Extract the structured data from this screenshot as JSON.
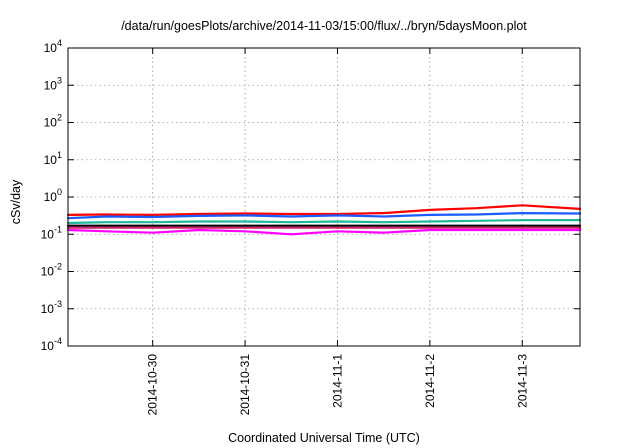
{
  "chart_data": {
    "type": "line",
    "title": "/data/run/goesPlots/archive/2014-11-03/15:00/flux/../bryn/5daysMoon.plot",
    "xlabel": "Coordinated Universal Time (UTC)",
    "ylabel": "cSv/day",
    "y_scale": "log",
    "ylim": [
      0.0001,
      10000
    ],
    "y_ticks": [
      {
        "value": 0.0001,
        "base": "10",
        "exp": "-4"
      },
      {
        "value": 0.001,
        "base": "10",
        "exp": "-3"
      },
      {
        "value": 0.01,
        "base": "10",
        "exp": "-2"
      },
      {
        "value": 0.1,
        "base": "10",
        "exp": "-1"
      },
      {
        "value": 1,
        "base": "10",
        "exp": "0"
      },
      {
        "value": 10,
        "base": "10",
        "exp": "1"
      },
      {
        "value": 100,
        "base": "10",
        "exp": "2"
      },
      {
        "value": 1000,
        "base": "10",
        "exp": "3"
      },
      {
        "value": 10000,
        "base": "10",
        "exp": "4"
      }
    ],
    "xlim": [
      "2014-10-29T02:00",
      "2014-11-03T15:00"
    ],
    "x_ticks": [
      "2014-10-30",
      "2014-10-31",
      "2014-11-1",
      "2014-11-2",
      "2014-11-3"
    ],
    "x_tick_dates": [
      "2014-10-30T00:00",
      "2014-10-31T00:00",
      "2014-11-01T00:00",
      "2014-11-02T00:00",
      "2014-11-03T00:00"
    ],
    "grid": true,
    "series": [
      {
        "color": "#ff0000",
        "values": [
          {
            "x": "2014-10-29T02:00",
            "y": 0.33
          },
          {
            "x": "2014-10-29T12:00",
            "y": 0.34
          },
          {
            "x": "2014-10-30T00:00",
            "y": 0.33
          },
          {
            "x": "2014-10-30T12:00",
            "y": 0.35
          },
          {
            "x": "2014-10-31T00:00",
            "y": 0.36
          },
          {
            "x": "2014-10-31T12:00",
            "y": 0.35
          },
          {
            "x": "2014-11-01T00:00",
            "y": 0.35
          },
          {
            "x": "2014-11-01T12:00",
            "y": 0.37
          },
          {
            "x": "2014-11-02T00:00",
            "y": 0.45
          },
          {
            "x": "2014-11-02T12:00",
            "y": 0.5
          },
          {
            "x": "2014-11-03T00:00",
            "y": 0.6
          },
          {
            "x": "2014-11-03T15:00",
            "y": 0.48
          }
        ]
      },
      {
        "color": "#1a5cff",
        "values": [
          {
            "x": "2014-10-29T02:00",
            "y": 0.27
          },
          {
            "x": "2014-10-29T12:00",
            "y": 0.3
          },
          {
            "x": "2014-10-30T00:00",
            "y": 0.29
          },
          {
            "x": "2014-10-30T12:00",
            "y": 0.31
          },
          {
            "x": "2014-10-31T00:00",
            "y": 0.32
          },
          {
            "x": "2014-10-31T12:00",
            "y": 0.3
          },
          {
            "x": "2014-11-01T00:00",
            "y": 0.32
          },
          {
            "x": "2014-11-01T12:00",
            "y": 0.3
          },
          {
            "x": "2014-11-02T00:00",
            "y": 0.33
          },
          {
            "x": "2014-11-02T12:00",
            "y": 0.34
          },
          {
            "x": "2014-11-03T00:00",
            "y": 0.37
          },
          {
            "x": "2014-11-03T15:00",
            "y": 0.36
          }
        ]
      },
      {
        "color": "#1fb89a",
        "values": [
          {
            "x": "2014-10-29T02:00",
            "y": 0.2
          },
          {
            "x": "2014-10-29T12:00",
            "y": 0.21
          },
          {
            "x": "2014-10-30T00:00",
            "y": 0.21
          },
          {
            "x": "2014-10-30T12:00",
            "y": 0.22
          },
          {
            "x": "2014-10-31T00:00",
            "y": 0.22
          },
          {
            "x": "2014-10-31T12:00",
            "y": 0.21
          },
          {
            "x": "2014-11-01T00:00",
            "y": 0.22
          },
          {
            "x": "2014-11-01T12:00",
            "y": 0.21
          },
          {
            "x": "2014-11-02T00:00",
            "y": 0.22
          },
          {
            "x": "2014-11-02T12:00",
            "y": 0.23
          },
          {
            "x": "2014-11-03T00:00",
            "y": 0.24
          },
          {
            "x": "2014-11-03T15:00",
            "y": 0.24
          }
        ]
      },
      {
        "color": "#000000",
        "values": [
          {
            "x": "2014-10-29T02:00",
            "y": 0.17
          },
          {
            "x": "2014-10-29T12:00",
            "y": 0.17
          },
          {
            "x": "2014-10-30T00:00",
            "y": 0.17
          },
          {
            "x": "2014-10-30T12:00",
            "y": 0.17
          },
          {
            "x": "2014-10-31T00:00",
            "y": 0.17
          },
          {
            "x": "2014-10-31T12:00",
            "y": 0.17
          },
          {
            "x": "2014-11-01T00:00",
            "y": 0.17
          },
          {
            "x": "2014-11-01T12:00",
            "y": 0.17
          },
          {
            "x": "2014-11-02T00:00",
            "y": 0.17
          },
          {
            "x": "2014-11-02T12:00",
            "y": 0.17
          },
          {
            "x": "2014-11-03T00:00",
            "y": 0.17
          },
          {
            "x": "2014-11-03T15:00",
            "y": 0.17
          }
        ]
      },
      {
        "color": "#cc2266",
        "values": [
          {
            "x": "2014-10-29T02:00",
            "y": 0.15
          },
          {
            "x": "2014-10-29T12:00",
            "y": 0.15
          },
          {
            "x": "2014-10-30T00:00",
            "y": 0.15
          },
          {
            "x": "2014-10-30T12:00",
            "y": 0.15
          },
          {
            "x": "2014-10-31T00:00",
            "y": 0.15
          },
          {
            "x": "2014-10-31T12:00",
            "y": 0.15
          },
          {
            "x": "2014-11-01T00:00",
            "y": 0.15
          },
          {
            "x": "2014-11-01T12:00",
            "y": 0.15
          },
          {
            "x": "2014-11-02T00:00",
            "y": 0.15
          },
          {
            "x": "2014-11-02T12:00",
            "y": 0.15
          },
          {
            "x": "2014-11-03T00:00",
            "y": 0.15
          },
          {
            "x": "2014-11-03T15:00",
            "y": 0.15
          }
        ]
      },
      {
        "color": "#ff00ff",
        "values": [
          {
            "x": "2014-10-29T02:00",
            "y": 0.13
          },
          {
            "x": "2014-10-29T12:00",
            "y": 0.12
          },
          {
            "x": "2014-10-30T00:00",
            "y": 0.11
          },
          {
            "x": "2014-10-30T12:00",
            "y": 0.13
          },
          {
            "x": "2014-10-31T00:00",
            "y": 0.12
          },
          {
            "x": "2014-10-31T12:00",
            "y": 0.1
          },
          {
            "x": "2014-11-01T00:00",
            "y": 0.12
          },
          {
            "x": "2014-11-01T12:00",
            "y": 0.11
          },
          {
            "x": "2014-11-02T00:00",
            "y": 0.13
          },
          {
            "x": "2014-11-02T12:00",
            "y": 0.13
          },
          {
            "x": "2014-11-03T00:00",
            "y": 0.13
          },
          {
            "x": "2014-11-03T15:00",
            "y": 0.13
          }
        ]
      }
    ]
  }
}
